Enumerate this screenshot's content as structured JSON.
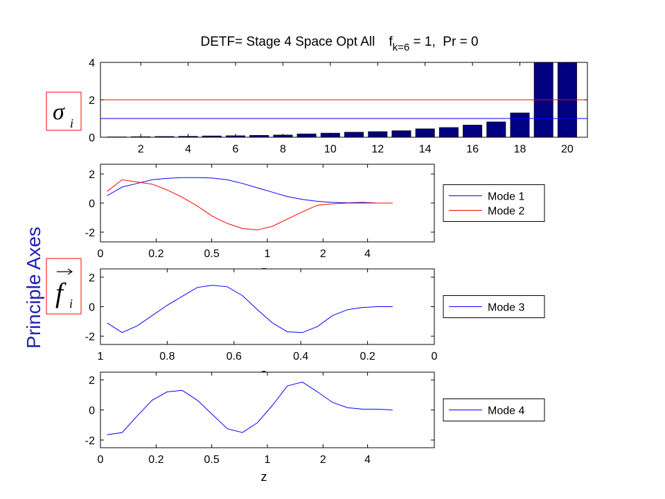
{
  "side_label": "Principle Axes",
  "sigma_label": {
    "symbol": "σ",
    "subscript": "i"
  },
  "f_label": {
    "symbol": "f",
    "subscript": "i"
  },
  "chart_data": [
    {
      "type": "bar",
      "title": "DETF= Stage 4 Space Opt All",
      "title_symbol": "f",
      "title_subscript": "k=6",
      "title_rest": " = 1,  Pr = 0",
      "x": [
        1,
        2,
        3,
        4,
        5,
        6,
        7,
        8,
        9,
        10,
        11,
        12,
        13,
        14,
        15,
        16,
        17,
        18,
        19,
        20
      ],
      "values": [
        0.02,
        0.03,
        0.04,
        0.05,
        0.07,
        0.08,
        0.1,
        0.12,
        0.18,
        0.22,
        0.27,
        0.3,
        0.35,
        0.45,
        0.52,
        0.65,
        0.82,
        1.3,
        4,
        4
      ],
      "color": "#000080",
      "hlines": [
        {
          "value": 2,
          "color": "#ff0000"
        },
        {
          "value": 1,
          "color": "#0000ff"
        }
      ],
      "xlim": [
        0.3,
        20.85
      ],
      "xticks": [
        2,
        4,
        6,
        8,
        10,
        12,
        14,
        16,
        18,
        20
      ],
      "ylim": [
        0,
        4
      ],
      "yticks": [
        0,
        2,
        4
      ]
    },
    {
      "type": "line",
      "xlabel": "z",
      "x": [
        0.98,
        0.935,
        0.89,
        0.845,
        0.8,
        0.755,
        0.71,
        0.665,
        0.62,
        0.575,
        0.53,
        0.485,
        0.44,
        0.395,
        0.35,
        0.305,
        0.26,
        0.215,
        0.17,
        0.125
      ],
      "series": [
        {
          "name": "Mode 1",
          "color": "#0000ff",
          "values": [
            0.5,
            1.1,
            1.35,
            1.6,
            1.7,
            1.75,
            1.75,
            1.72,
            1.6,
            1.35,
            1.05,
            0.75,
            0.45,
            0.25,
            0.12,
            0.05,
            0.02,
            0.05,
            0,
            0
          ]
        },
        {
          "name": "Mode 2",
          "color": "#ff0000",
          "values": [
            0.8,
            1.6,
            1.45,
            1.3,
            0.9,
            0.4,
            -0.2,
            -0.9,
            -1.4,
            -1.75,
            -1.85,
            -1.6,
            -1.1,
            -0.6,
            -0.15,
            -0.05,
            0,
            0,
            0,
            0
          ]
        }
      ],
      "xlim": [
        1,
        0
      ],
      "xticks": [
        {
          "value": 1,
          "label": "0"
        },
        {
          "value": 0.8333,
          "label": "0.2"
        },
        {
          "value": 0.6667,
          "label": "0.5"
        },
        {
          "value": 0.5,
          "label": "1"
        },
        {
          "value": 0.3333,
          "label": "2"
        },
        {
          "value": 0.2,
          "label": "4"
        }
      ],
      "ylim": [
        -2.67,
        2.67
      ],
      "yticks": [
        -2,
        0,
        2
      ],
      "legend": "right"
    },
    {
      "type": "line",
      "xlabel": "a",
      "x": [
        0.98,
        0.935,
        0.89,
        0.845,
        0.8,
        0.755,
        0.71,
        0.665,
        0.62,
        0.575,
        0.53,
        0.485,
        0.44,
        0.395,
        0.35,
        0.305,
        0.26,
        0.215,
        0.17,
        0.125
      ],
      "series": [
        {
          "name": "Mode 3",
          "color": "#0000ff",
          "values": [
            -1.1,
            -1.75,
            -1.3,
            -0.6,
            0.1,
            0.7,
            1.3,
            1.45,
            1.35,
            0.75,
            -0.2,
            -1.1,
            -1.7,
            -1.75,
            -1.35,
            -0.6,
            -0.2,
            -0.05,
            0,
            0
          ]
        }
      ],
      "xlim": [
        1,
        0
      ],
      "xticks": [
        1,
        0.8,
        0.6,
        0.4,
        0.2,
        0
      ],
      "ylim": [
        -2.56,
        2.56
      ],
      "yticks": [
        -2,
        0,
        2
      ],
      "legend": "right"
    },
    {
      "type": "line",
      "xlabel": "z",
      "x": [
        0.98,
        0.935,
        0.89,
        0.845,
        0.8,
        0.755,
        0.71,
        0.665,
        0.62,
        0.575,
        0.53,
        0.485,
        0.44,
        0.395,
        0.35,
        0.305,
        0.26,
        0.215,
        0.17,
        0.125
      ],
      "series": [
        {
          "name": "Mode 4",
          "color": "#0000ff",
          "values": [
            -1.65,
            -1.5,
            -0.4,
            0.65,
            1.2,
            1.3,
            0.65,
            -0.3,
            -1.25,
            -1.5,
            -0.85,
            0.3,
            1.6,
            1.85,
            1.2,
            0.5,
            0.15,
            0.05,
            0.05,
            0
          ]
        }
      ],
      "xlim": [
        1,
        0
      ],
      "xticks": [
        {
          "value": 1,
          "label": "0"
        },
        {
          "value": 0.8333,
          "label": "0.2"
        },
        {
          "value": 0.6667,
          "label": "0.5"
        },
        {
          "value": 0.5,
          "label": "1"
        },
        {
          "value": 0.3333,
          "label": "2"
        },
        {
          "value": 0.2,
          "label": "4"
        }
      ],
      "ylim": [
        -2.51,
        2.51
      ],
      "yticks": [
        -2,
        0,
        2
      ],
      "legend": "right"
    }
  ]
}
